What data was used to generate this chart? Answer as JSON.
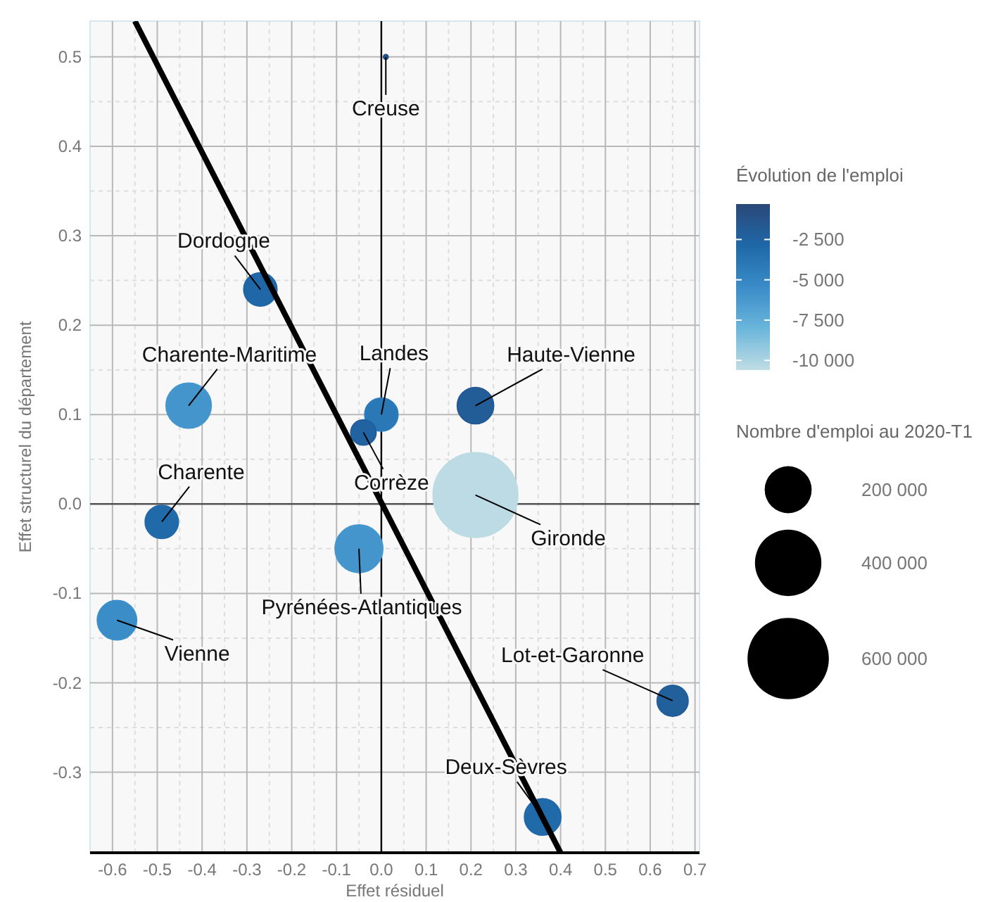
{
  "chart_data": {
    "type": "bubble",
    "xlabel": "Effet résiduel",
    "ylabel": "Effet structurel du département",
    "legend_title": "Nombre d'emploi au 2020-T1",
    "clabel": "Évolution de l'emploi",
    "xlim": [
      -0.65,
      0.71
    ],
    "xticks": [
      -0.6,
      -0.5,
      -0.4,
      -0.3,
      -0.2,
      -0.1,
      {
        "value": 0,
        "label": "0.0"
      },
      0.1,
      0.2,
      0.3,
      0.4,
      0.5,
      0.6,
      0.7
    ],
    "ylim": [
      -0.39,
      0.54
    ],
    "yticks": [
      -0.3,
      -0.2,
      -0.1,
      {
        "value": 0,
        "label": "0.0"
      },
      0.1,
      0.2,
      0.3,
      0.4,
      0.5
    ],
    "clim": [
      -10600,
      -300
    ],
    "cticks": [
      {
        "value": -2500,
        "label": "-2 500"
      },
      {
        "value": -5000,
        "label": "-5 000"
      },
      {
        "value": -7500,
        "label": "-7 500"
      },
      {
        "value": -10000,
        "label": "-10 000"
      }
    ],
    "size_legend": [
      {
        "value": 200000,
        "label": "200 000"
      },
      {
        "value": 400000,
        "label": "400 000"
      },
      {
        "value": 600000,
        "label": "600 000"
      }
    ],
    "grid": true,
    "ref_lines": [
      {
        "axis": "x",
        "value": 0,
        "color": "#000000"
      },
      {
        "axis": "y",
        "value": 0,
        "color": "#555555"
      }
    ],
    "series": [
      {
        "x": [
          0.01,
          -0.27,
          -0.43,
          0.0,
          -0.04,
          0.21,
          -0.49,
          0.21,
          -0.05,
          -0.59,
          0.65,
          0.36
        ],
        "values": [
          0.5,
          0.24,
          0.11,
          0.1,
          0.08,
          0.11,
          -0.02,
          0.01,
          -0.05,
          -0.13,
          -0.22,
          -0.35
        ],
        "sizes": [
          2000,
          100000,
          185000,
          100000,
          58000,
          120000,
          100000,
          650000,
          207000,
          140000,
          87000,
          120000
        ],
        "cvalues": [
          -1500,
          -2800,
          -6000,
          -4000,
          -2500,
          -2000,
          -3000,
          -10500,
          -6000,
          -5500,
          -2200,
          -3000
        ],
        "colors": [
          "#27508a",
          "#2065a4",
          "#4497cf",
          "#2c7cc0",
          "#215e9d",
          "#245896",
          "#2269aa",
          "#bcdbe3",
          "#4497cf",
          "#3b8fcb",
          "#235c9a",
          "#2269aa"
        ]
      },
      {
        "type": "line",
        "color": "#000000",
        "x": [
          -0.55,
          0.4
        ],
        "values": [
          0.54,
          -0.39
        ]
      }
    ],
    "annotations": [
      {
        "text": "Creuse",
        "x": 0.01,
        "y": 0.5
      },
      {
        "text": "Dordogne",
        "x": -0.27,
        "y": 0.24
      },
      {
        "text": "Charente-Maritime",
        "x": -0.43,
        "y": 0.11
      },
      {
        "text": "Landes",
        "x": 0.0,
        "y": 0.1
      },
      {
        "text": "Corrèze",
        "x": -0.04,
        "y": 0.08
      },
      {
        "text": "Haute-Vienne",
        "x": 0.21,
        "y": 0.11
      },
      {
        "text": "Charente",
        "x": -0.49,
        "y": -0.02
      },
      {
        "text": "Gironde",
        "x": 0.21,
        "y": 0.01
      },
      {
        "text": "Pyrénées-Atlantiques",
        "x": -0.05,
        "y": -0.05
      },
      {
        "text": "Vienne",
        "x": -0.59,
        "y": -0.13
      },
      {
        "text": "Lot-et-Garonne",
        "x": 0.65,
        "y": -0.22
      },
      {
        "text": "Deux-Sèvres",
        "x": 0.36,
        "y": -0.35
      }
    ]
  }
}
